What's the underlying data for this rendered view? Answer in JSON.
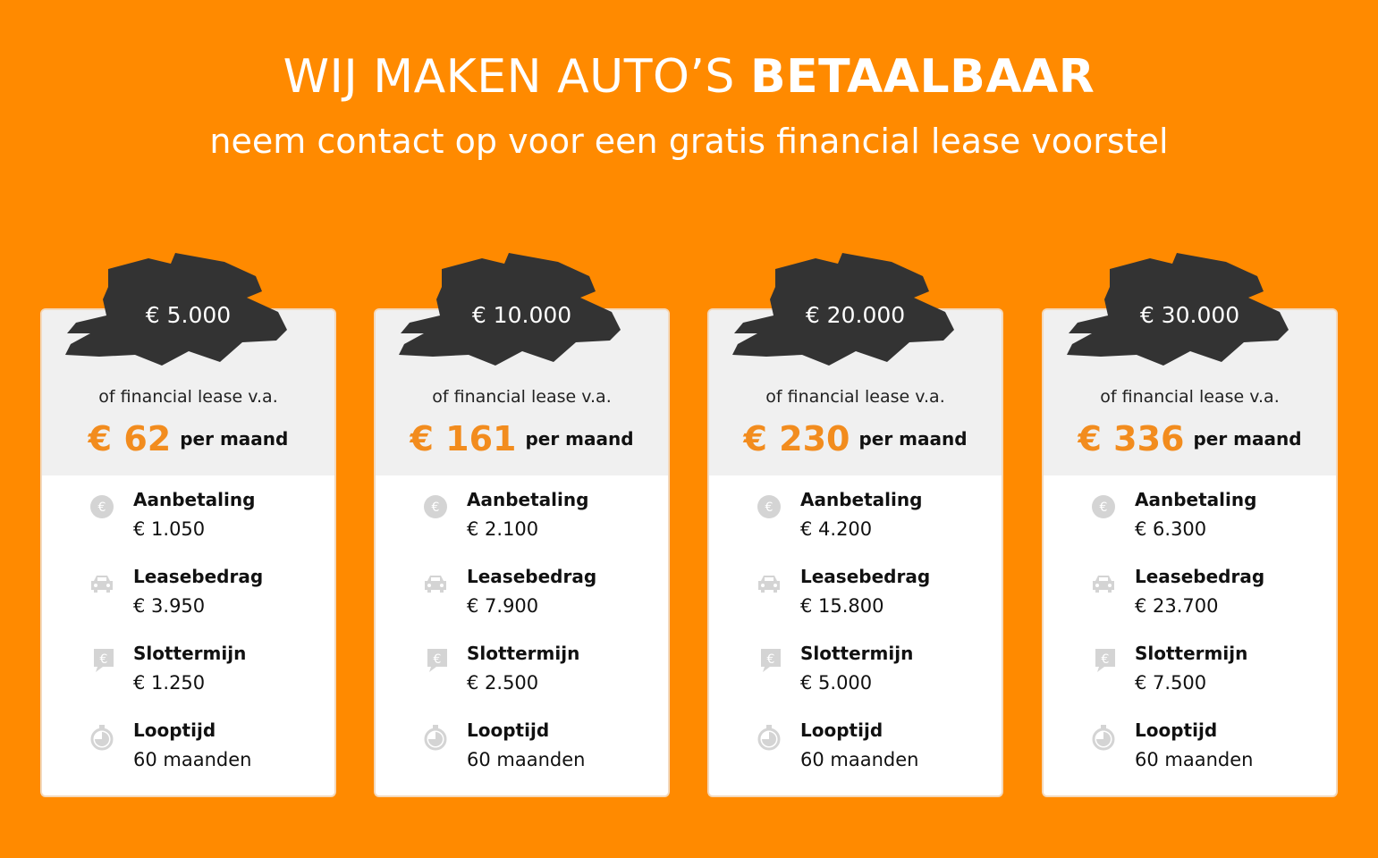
{
  "header": {
    "title_regular": "WIJ MAKEN AUTO’S",
    "title_bold": "BETAALBAAR",
    "subtitle": "neem contact op voor een gratis financial lease voorstel"
  },
  "colors": {
    "background": "#ff8a00",
    "price": "#f28c1e",
    "brush": "#333333"
  },
  "labels": {
    "lease_from": "of financial lease v.a.",
    "per_month": "per maand",
    "down_payment": "Aanbetaling",
    "lease_amount": "Leasebedrag",
    "final_term": "Slottermijn",
    "duration": "Looptijd"
  },
  "icons": [
    "euro-coin-icon",
    "car-icon",
    "euro-speech-bubble-icon",
    "stopwatch-icon"
  ],
  "cards": [
    {
      "amount": "€ 5.000",
      "price": "€ 62",
      "down": "€ 1.050",
      "lease": "€ 3.950",
      "final": "€ 1.250",
      "duration": "60 maanden"
    },
    {
      "amount": "€ 10.000",
      "price": "€ 161",
      "down": "€ 2.100",
      "lease": "€ 7.900",
      "final": "€ 2.500",
      "duration": "60 maanden"
    },
    {
      "amount": "€ 20.000",
      "price": "€ 230",
      "down": "€ 4.200",
      "lease": "€ 15.800",
      "final": "€ 5.000",
      "duration": "60 maanden"
    },
    {
      "amount": "€ 30.000",
      "price": "€ 336",
      "down": "€ 6.300",
      "lease": "€ 23.700",
      "final": "€ 7.500",
      "duration": "60 maanden"
    }
  ]
}
